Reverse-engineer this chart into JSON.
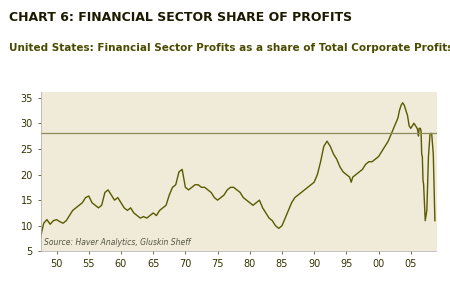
{
  "title": "CHART 6: FINANCIAL SECTOR SHARE OF PROFITS",
  "subtitle": "United States: Financial Sector Profits as a share of Total Corporate Profits",
  "source_text": "Source: Haver Analytics, Gluskin Sheff",
  "bg_color": "#f0ead8",
  "title_bg_color": "#ffffff",
  "line_color": "#5a5a00",
  "hline_color": "#8b8b5a",
  "hline_value": 28.0,
  "title_color": "#1a1a00",
  "subtitle_color": "#4a4a00",
  "source_color": "#555544",
  "ylim": [
    5,
    36
  ],
  "yticks": [
    5,
    10,
    15,
    20,
    25,
    30,
    35
  ],
  "xlim": [
    1947.5,
    2009.0
  ],
  "xticks": [
    1950,
    1955,
    1960,
    1965,
    1970,
    1975,
    1980,
    1985,
    1990,
    1995,
    2000,
    2005
  ],
  "xtick_labels": [
    "50",
    "55",
    "60",
    "65",
    "70",
    "75",
    "80",
    "85",
    "90",
    "95",
    "00",
    "05"
  ],
  "data": [
    [
      1947.5,
      7.8
    ],
    [
      1948.0,
      10.5
    ],
    [
      1948.5,
      11.2
    ],
    [
      1949.0,
      10.3
    ],
    [
      1949.5,
      11.0
    ],
    [
      1950.0,
      11.2
    ],
    [
      1950.5,
      10.8
    ],
    [
      1951.0,
      10.5
    ],
    [
      1951.5,
      11.0
    ],
    [
      1952.0,
      12.0
    ],
    [
      1952.5,
      13.0
    ],
    [
      1953.0,
      13.5
    ],
    [
      1953.5,
      14.0
    ],
    [
      1954.0,
      14.5
    ],
    [
      1954.5,
      15.5
    ],
    [
      1955.0,
      15.8
    ],
    [
      1955.5,
      14.5
    ],
    [
      1956.0,
      14.0
    ],
    [
      1956.5,
      13.5
    ],
    [
      1957.0,
      14.0
    ],
    [
      1957.5,
      16.5
    ],
    [
      1958.0,
      17.0
    ],
    [
      1958.5,
      16.0
    ],
    [
      1959.0,
      15.0
    ],
    [
      1959.5,
      15.5
    ],
    [
      1960.0,
      14.5
    ],
    [
      1960.5,
      13.5
    ],
    [
      1961.0,
      13.0
    ],
    [
      1961.5,
      13.5
    ],
    [
      1962.0,
      12.5
    ],
    [
      1962.5,
      12.0
    ],
    [
      1963.0,
      11.5
    ],
    [
      1963.5,
      11.8
    ],
    [
      1964.0,
      11.5
    ],
    [
      1964.5,
      12.0
    ],
    [
      1965.0,
      12.5
    ],
    [
      1965.5,
      12.0
    ],
    [
      1966.0,
      13.0
    ],
    [
      1966.5,
      13.5
    ],
    [
      1967.0,
      14.0
    ],
    [
      1967.5,
      16.0
    ],
    [
      1968.0,
      17.5
    ],
    [
      1968.5,
      18.0
    ],
    [
      1969.0,
      20.5
    ],
    [
      1969.5,
      21.0
    ],
    [
      1970.0,
      17.5
    ],
    [
      1970.5,
      17.0
    ],
    [
      1971.0,
      17.5
    ],
    [
      1971.5,
      18.0
    ],
    [
      1972.0,
      18.0
    ],
    [
      1972.5,
      17.5
    ],
    [
      1973.0,
      17.5
    ],
    [
      1973.5,
      17.0
    ],
    [
      1974.0,
      16.5
    ],
    [
      1974.5,
      15.5
    ],
    [
      1975.0,
      15.0
    ],
    [
      1975.5,
      15.5
    ],
    [
      1976.0,
      16.0
    ],
    [
      1976.5,
      17.0
    ],
    [
      1977.0,
      17.5
    ],
    [
      1977.5,
      17.5
    ],
    [
      1978.0,
      17.0
    ],
    [
      1978.5,
      16.5
    ],
    [
      1979.0,
      15.5
    ],
    [
      1979.5,
      15.0
    ],
    [
      1980.0,
      14.5
    ],
    [
      1980.5,
      14.0
    ],
    [
      1981.0,
      14.5
    ],
    [
      1981.5,
      15.0
    ],
    [
      1982.0,
      13.5
    ],
    [
      1982.5,
      12.5
    ],
    [
      1983.0,
      11.5
    ],
    [
      1983.5,
      11.0
    ],
    [
      1984.0,
      10.0
    ],
    [
      1984.5,
      9.5
    ],
    [
      1985.0,
      10.0
    ],
    [
      1985.5,
      11.5
    ],
    [
      1986.0,
      13.0
    ],
    [
      1986.5,
      14.5
    ],
    [
      1987.0,
      15.5
    ],
    [
      1987.5,
      16.0
    ],
    [
      1988.0,
      16.5
    ],
    [
      1988.5,
      17.0
    ],
    [
      1989.0,
      17.5
    ],
    [
      1989.5,
      18.0
    ],
    [
      1990.0,
      18.5
    ],
    [
      1990.5,
      20.0
    ],
    [
      1991.0,
      22.5
    ],
    [
      1991.5,
      25.5
    ],
    [
      1992.0,
      26.5
    ],
    [
      1992.25,
      26.0
    ],
    [
      1992.5,
      25.5
    ],
    [
      1993.0,
      24.0
    ],
    [
      1993.5,
      23.0
    ],
    [
      1994.0,
      21.5
    ],
    [
      1994.5,
      20.5
    ],
    [
      1995.0,
      20.0
    ],
    [
      1995.5,
      19.5
    ],
    [
      1995.75,
      18.5
    ],
    [
      1996.0,
      19.5
    ],
    [
      1996.5,
      20.0
    ],
    [
      1997.0,
      20.5
    ],
    [
      1997.5,
      21.0
    ],
    [
      1998.0,
      22.0
    ],
    [
      1998.5,
      22.5
    ],
    [
      1999.0,
      22.5
    ],
    [
      1999.5,
      23.0
    ],
    [
      2000.0,
      23.5
    ],
    [
      2000.5,
      24.5
    ],
    [
      2001.0,
      25.5
    ],
    [
      2001.5,
      26.5
    ],
    [
      2002.0,
      28.0
    ],
    [
      2002.5,
      29.5
    ],
    [
      2003.0,
      31.0
    ],
    [
      2003.25,
      32.5
    ],
    [
      2003.5,
      33.5
    ],
    [
      2003.75,
      34.0
    ],
    [
      2004.0,
      33.5
    ],
    [
      2004.25,
      32.5
    ],
    [
      2004.5,
      31.5
    ],
    [
      2004.75,
      29.5
    ],
    [
      2005.0,
      29.0
    ],
    [
      2005.25,
      29.5
    ],
    [
      2005.5,
      30.0
    ],
    [
      2005.75,
      29.5
    ],
    [
      2006.0,
      29.0
    ],
    [
      2006.1,
      28.5
    ],
    [
      2006.2,
      27.5
    ],
    [
      2006.3,
      29.0
    ],
    [
      2006.5,
      29.0
    ],
    [
      2006.6,
      28.5
    ],
    [
      2006.7,
      24.0
    ],
    [
      2006.8,
      23.5
    ],
    [
      2006.9,
      19.0
    ],
    [
      2007.0,
      18.0
    ],
    [
      2007.25,
      11.0
    ],
    [
      2007.5,
      13.0
    ],
    [
      2007.75,
      23.5
    ],
    [
      2008.0,
      28.0
    ],
    [
      2008.25,
      28.0
    ],
    [
      2008.5,
      24.0
    ],
    [
      2008.75,
      11.0
    ]
  ]
}
